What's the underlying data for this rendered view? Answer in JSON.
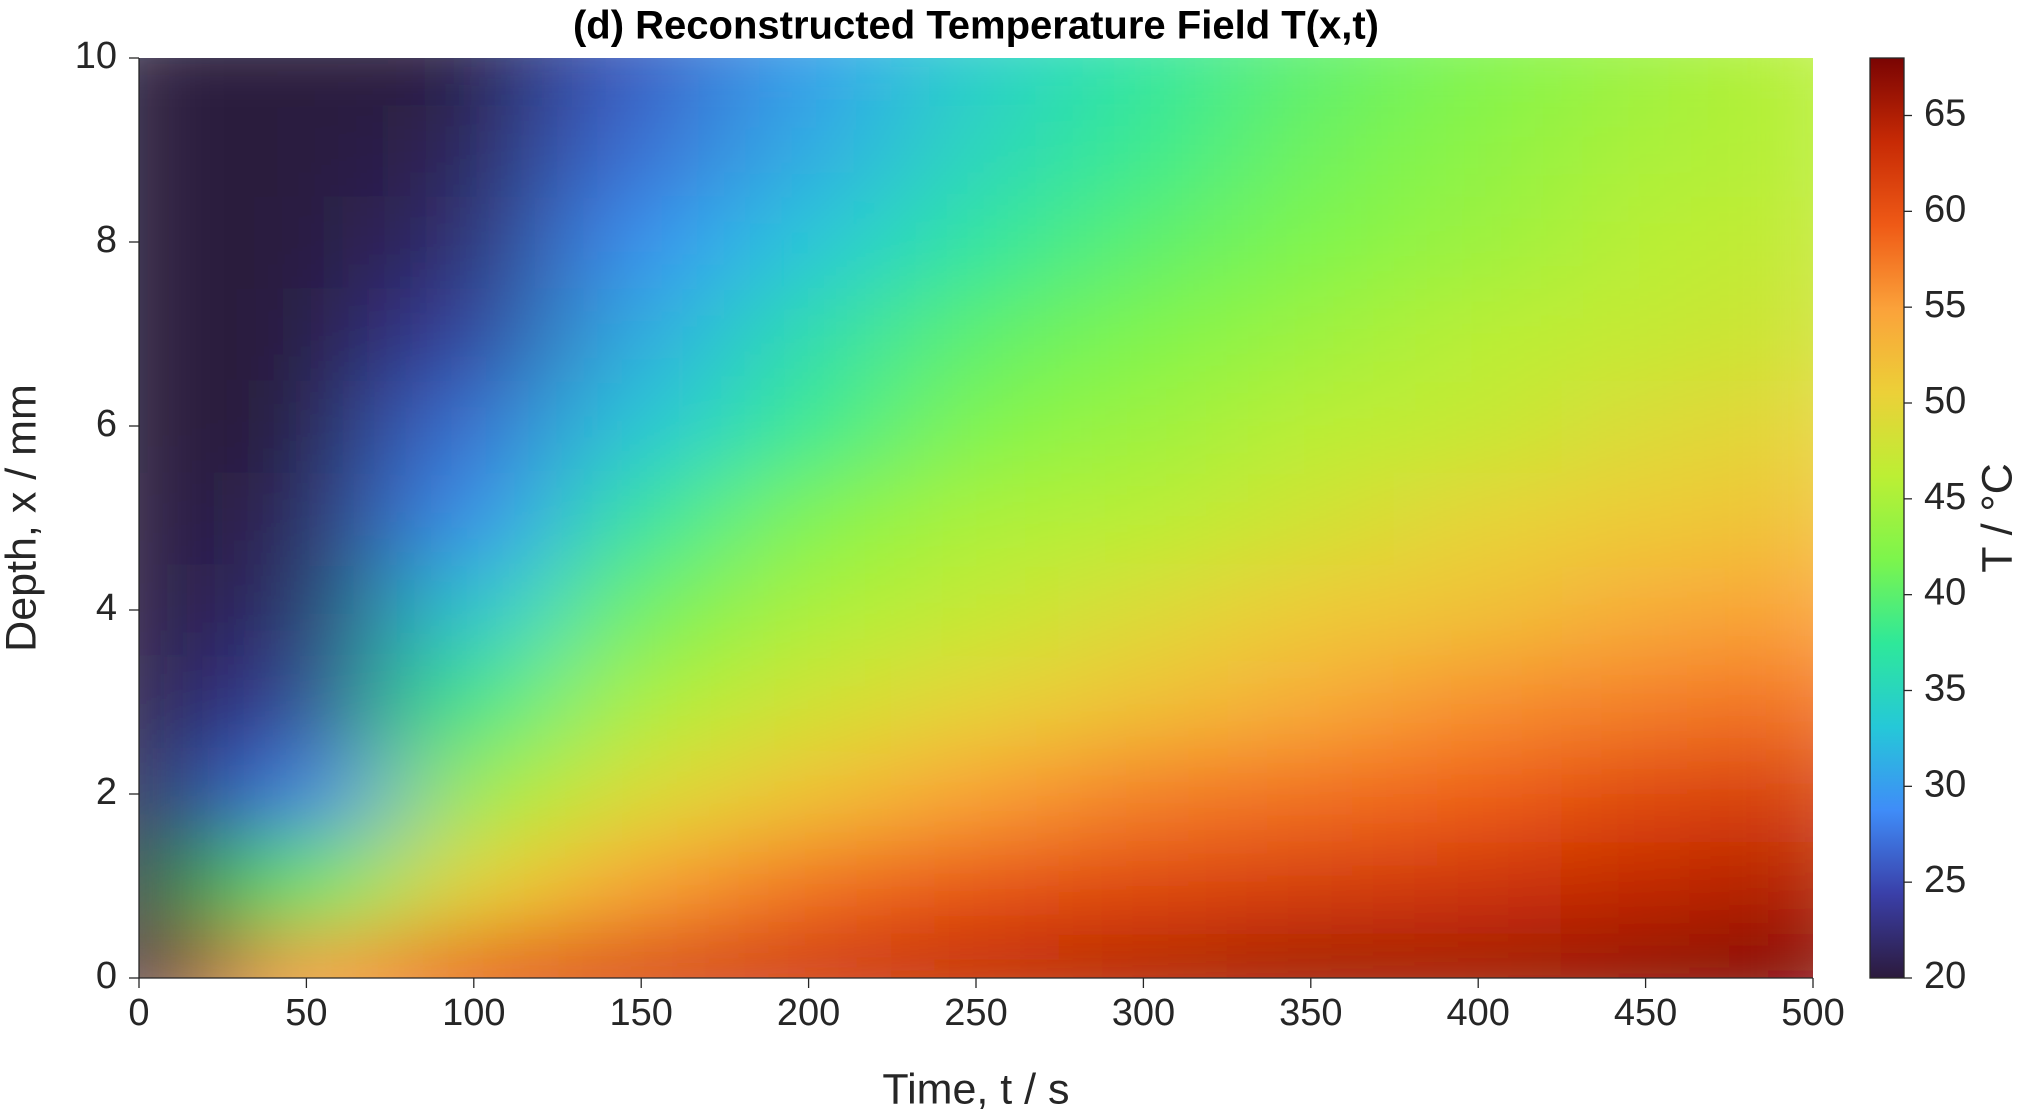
{
  "chart_data": {
    "type": "heatmap",
    "title": "(d)  Reconstructed Temperature Field T(x,t)",
    "x_label": "Time, t / s",
    "y_label": "Depth, x / mm",
    "colorbar_label": "T / °C",
    "x": [
      0,
      50,
      100,
      150,
      200,
      250,
      300,
      350,
      400,
      450,
      500
    ],
    "y": [
      0,
      1,
      2,
      3,
      4,
      5,
      6,
      7,
      8,
      9,
      10
    ],
    "values": [
      [
        20,
        55,
        60,
        62,
        63,
        64,
        65,
        66,
        66,
        67,
        68
      ],
      [
        20,
        40,
        50,
        55,
        58,
        60,
        61,
        62,
        63,
        64,
        65
      ],
      [
        20,
        28,
        44,
        49,
        52,
        55,
        57,
        58,
        59,
        61,
        62
      ],
      [
        20,
        24,
        38,
        45,
        48,
        50,
        52,
        54,
        56,
        57,
        58
      ],
      [
        20,
        22,
        33,
        41,
        45,
        47,
        49,
        51,
        52,
        54,
        55
      ],
      [
        20,
        21,
        29,
        37,
        42,
        45,
        46,
        48,
        50,
        51,
        52
      ],
      [
        20,
        20,
        27,
        33,
        38,
        42,
        44,
        46,
        47,
        49,
        50
      ],
      [
        20,
        20,
        24,
        31,
        36,
        40,
        42,
        44,
        46,
        47,
        48
      ],
      [
        20,
        20,
        22,
        29,
        33,
        37,
        40,
        42,
        44,
        46,
        47
      ],
      [
        20,
        20,
        21,
        27,
        31,
        35,
        38,
        41,
        43,
        45,
        46
      ],
      [
        20,
        20,
        20,
        26,
        30,
        34,
        37,
        40,
        42,
        44,
        46
      ]
    ],
    "xlim": [
      0,
      500
    ],
    "ylim": [
      0,
      10
    ],
    "xticks": [
      0,
      50,
      100,
      150,
      200,
      250,
      300,
      350,
      400,
      450,
      500
    ],
    "yticks": [
      0,
      2,
      4,
      6,
      8,
      10
    ],
    "clim": [
      20,
      68
    ],
    "cticks": [
      20,
      25,
      30,
      35,
      40,
      45,
      50,
      55,
      60,
      65
    ],
    "colormap": [
      "#2c1a3c",
      "#3a3fa8",
      "#3f8cf8",
      "#25c8d8",
      "#2ee89a",
      "#7cf54c",
      "#bcef34",
      "#ecd038",
      "#fba23a",
      "#ef5a16",
      "#c72a05",
      "#7a0403"
    ]
  }
}
